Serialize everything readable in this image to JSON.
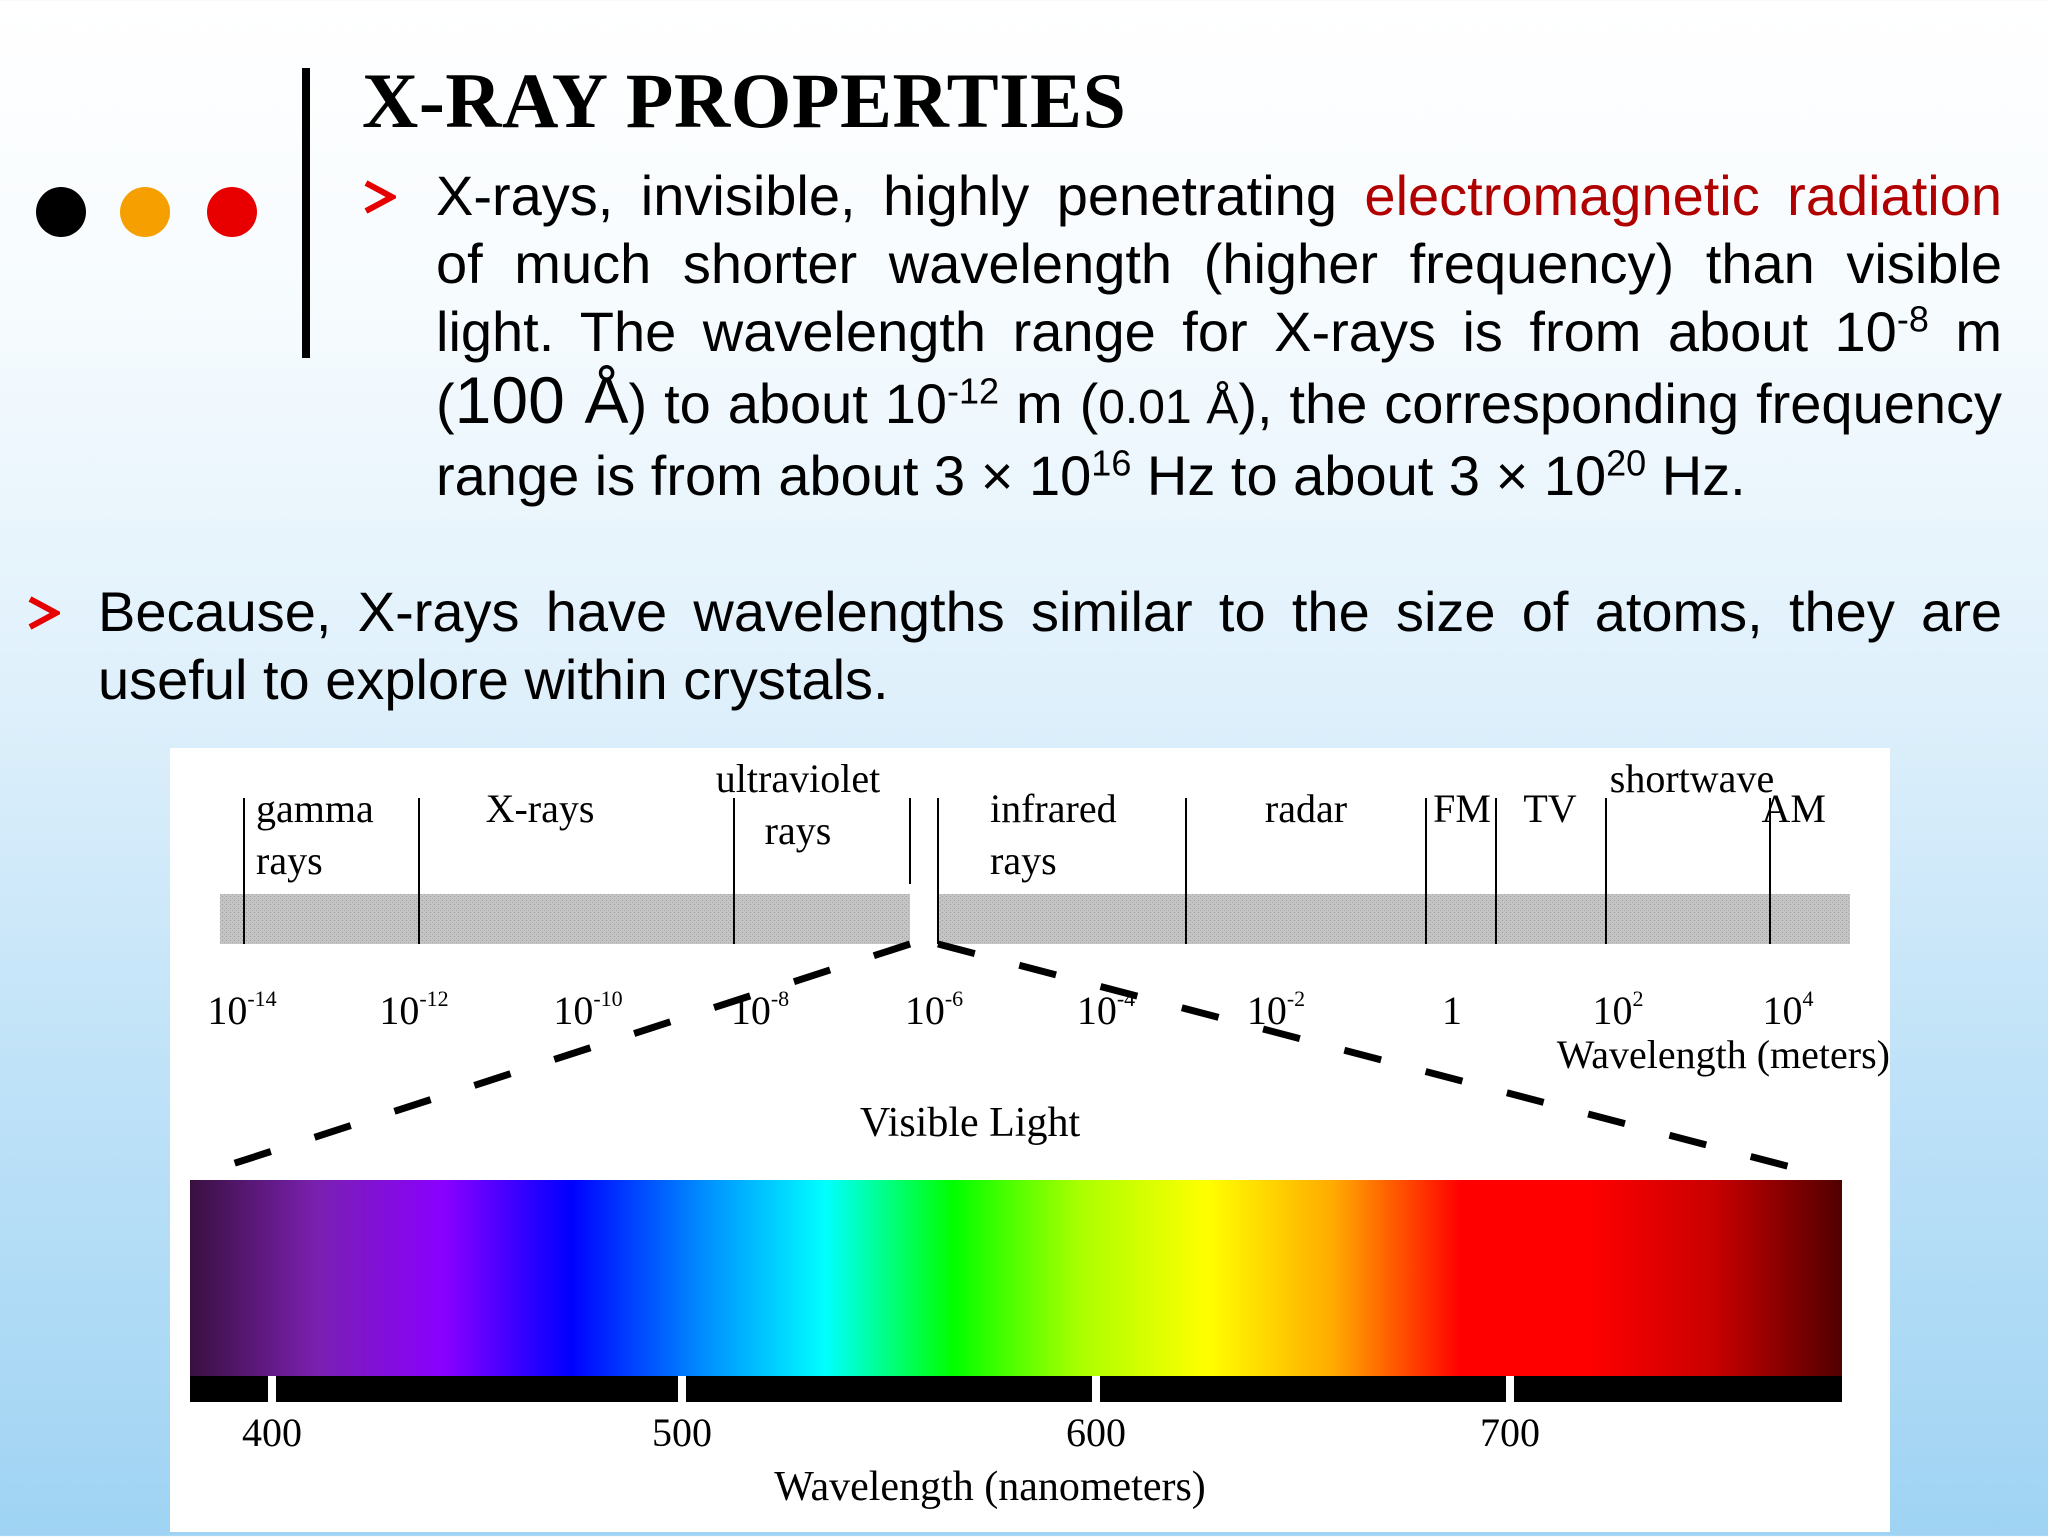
{
  "slide": {
    "title": "X-RAY PROPERTIES",
    "dot_colors": [
      "#000000",
      "#f5a000",
      "#e80000"
    ],
    "bullet_color": "#e60000",
    "accent_color": "#b00000"
  },
  "bullet1": {
    "part_a": "X-rays, invisible, highly penetrating ",
    "highlight": "electromagnetic radiation",
    "part_b": " of much shorter wavelength (higher frequency) than visible light. The wavelength range for X-rays is from about 10",
    "sup1": "-8",
    "part_c": " m (",
    "angstrom1": "100 Å",
    "part_d": ") to about 10",
    "sup2": "-12",
    "part_e": " m (",
    "angstrom2": "0.01 Å",
    "part_f": "), the corresponding frequency range is from about 3 × 10",
    "sup3": "16",
    "part_g": " Hz to about 3 × 10",
    "sup4": "20",
    "part_h": " Hz."
  },
  "bullet2": {
    "text": "Because, X-rays have wavelengths similar to the size of atoms, they are useful to explore within crystals."
  },
  "spectrum": {
    "regions": [
      {
        "lines": [
          "gamma",
          "rays"
        ]
      },
      {
        "lines": [
          "X-rays"
        ]
      },
      {
        "lines": [
          "ultraviolet",
          "rays"
        ]
      },
      {
        "lines": [
          "infrared",
          "rays"
        ]
      },
      {
        "lines": [
          "radar"
        ]
      },
      {
        "lines": [
          "FM"
        ]
      },
      {
        "lines": [
          "TV"
        ]
      },
      {
        "lines": [
          "shortwave"
        ]
      },
      {
        "lines": [
          "AM"
        ]
      }
    ],
    "ticks": [
      {
        "base": "10",
        "exp": "-14"
      },
      {
        "base": "10",
        "exp": "-12"
      },
      {
        "base": "10",
        "exp": "-10"
      },
      {
        "base": "10",
        "exp": "-8"
      },
      {
        "base": "10",
        "exp": "-6"
      },
      {
        "base": "10",
        "exp": "-4"
      },
      {
        "base": "10",
        "exp": "-2"
      },
      {
        "base": "1",
        "exp": ""
      },
      {
        "base": "10",
        "exp": "2"
      },
      {
        "base": "10",
        "exp": "4"
      }
    ],
    "wavelength_label": "Wavelength (meters)",
    "visible_label": "Visible Light",
    "nm_ticks": [
      "400",
      "500",
      "600",
      "700"
    ],
    "nm_label": "Wavelength (nanometers)",
    "band_colors": [
      "#3a1040",
      "#7a20b0",
      "#8a00ff",
      "#0000ff",
      "#0088ff",
      "#00ffff",
      "#00ff00",
      "#aaff00",
      "#ffff00",
      "#ffaa00",
      "#ff0000",
      "#ff0000",
      "#c80000",
      "#500000"
    ]
  }
}
